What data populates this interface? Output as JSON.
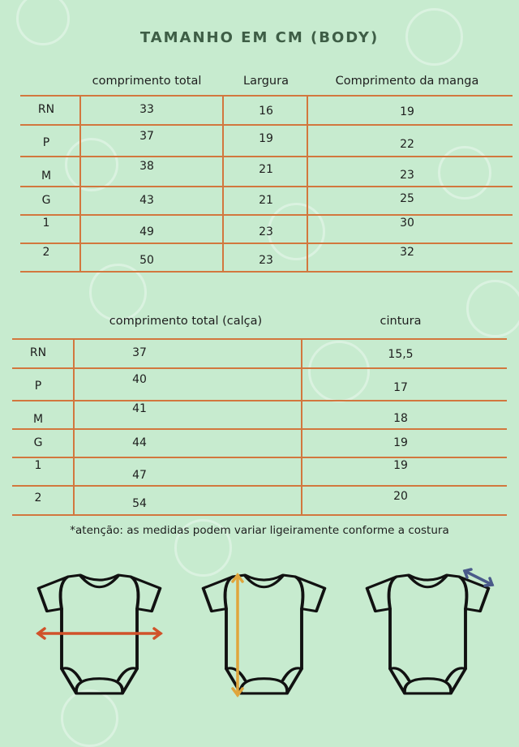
{
  "title": "TAMANHO EM CM (BODY)",
  "table_body": {
    "headers": [
      "",
      "comprimento total",
      "Largura",
      "Comprimento da manga"
    ],
    "rows": [
      [
        "RN",
        "33",
        "16",
        "19"
      ],
      [
        "P",
        "37",
        "19",
        "22"
      ],
      [
        "M",
        "38",
        "21",
        "23"
      ],
      [
        "G",
        "43",
        "21",
        "25"
      ],
      [
        "1",
        "49",
        "23",
        "30"
      ],
      [
        "2",
        "50",
        "23",
        "32"
      ]
    ]
  },
  "table_pants": {
    "headers": [
      "",
      "comprimento total  (calça)",
      "cintura"
    ],
    "rows": [
      [
        "RN",
        "37",
        "15,5"
      ],
      [
        "P",
        "40",
        "17"
      ],
      [
        "M",
        "41",
        "18"
      ],
      [
        "G",
        "44",
        "19"
      ],
      [
        "1",
        "47",
        "19"
      ],
      [
        "2",
        "54",
        "20"
      ]
    ]
  },
  "note": "*atenção: as medidas podem variar ligeiramente conforme a costura",
  "colors": {
    "background": "#c7ebcf",
    "title": "#3e5e46",
    "table_lines": "#d2773e",
    "arrow_width": "#d0522a",
    "arrow_length": "#e0a53c",
    "arrow_sleeve": "#4a5a8a"
  },
  "illustrations": [
    "bodysuit-width-icon",
    "bodysuit-length-icon",
    "bodysuit-sleeve-icon"
  ]
}
